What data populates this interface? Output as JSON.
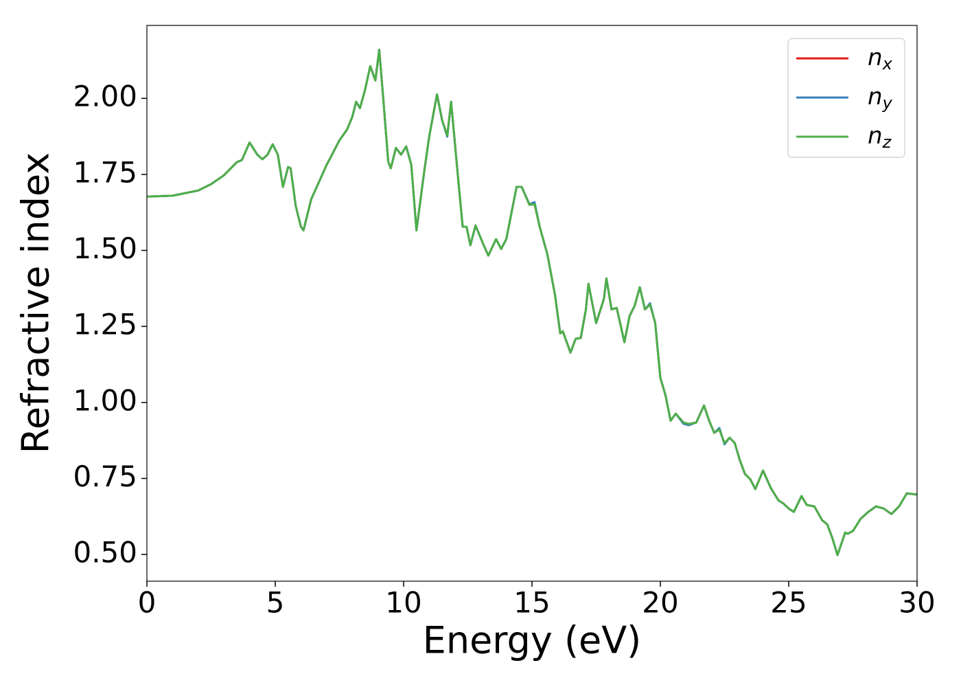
{
  "chart_data": {
    "type": "line",
    "xlabel": "Energy (eV)",
    "ylabel": "Refractive index",
    "x": [
      0,
      1,
      2,
      2.5,
      3,
      3.5,
      3.7,
      4.0,
      4.3,
      4.5,
      4.7,
      4.9,
      5.1,
      5.3,
      5.5,
      5.6,
      5.8,
      6.0,
      6.1,
      6.4,
      7,
      7.5,
      7.8,
      8.0,
      8.15,
      8.3,
      8.5,
      8.7,
      8.9,
      9.05,
      9.2,
      9.4,
      9.5,
      9.7,
      9.9,
      10.1,
      10.3,
      10.5,
      10.8,
      11.0,
      11.3,
      11.5,
      11.7,
      11.85,
      12.1,
      12.3,
      12.45,
      12.6,
      12.8,
      13.1,
      13.3,
      13.6,
      13.8,
      14.0,
      14.2,
      14.4,
      14.6,
      14.9,
      15.1,
      15.3,
      15.6,
      15.9,
      16.1,
      16.2,
      16.5,
      16.7,
      16.9,
      17.1,
      17.2,
      17.5,
      17.8,
      17.9,
      18.1,
      18.3,
      18.6,
      18.8,
      19.0,
      19.2,
      19.4,
      19.6,
      19.8,
      20.0,
      20.2,
      20.4,
      20.6,
      20.9,
      21.1,
      21.4,
      21.7,
      21.9,
      22.1,
      22.3,
      22.5,
      22.7,
      22.9,
      23.1,
      23.3,
      23.5,
      23.7,
      24.0,
      24.3,
      24.6,
      24.8,
      25.0,
      25.2,
      25.5,
      25.7,
      26.0,
      26.3,
      26.5,
      26.7,
      26.9,
      27.2,
      27.3,
      27.5,
      27.8,
      28.1,
      28.4,
      28.7,
      29.0,
      29.3,
      29.6,
      30.0
    ],
    "series": [
      {
        "name": "nx",
        "color": "#e41a1c",
        "values": [
          1.677,
          1.68,
          1.697,
          1.718,
          1.747,
          1.79,
          1.797,
          1.855,
          1.815,
          1.8,
          1.815,
          1.849,
          1.815,
          1.709,
          1.774,
          1.77,
          1.645,
          1.578,
          1.566,
          1.668,
          1.781,
          1.862,
          1.898,
          1.939,
          1.989,
          1.968,
          2.029,
          2.106,
          2.059,
          2.16,
          2.007,
          1.792,
          1.77,
          1.837,
          1.815,
          1.842,
          1.781,
          1.566,
          1.758,
          1.876,
          2.013,
          1.928,
          1.878,
          1.989,
          1.758,
          1.578,
          1.578,
          1.517,
          1.582,
          1.521,
          1.483,
          1.537,
          1.505,
          1.537,
          1.623,
          1.709,
          1.709,
          1.65,
          1.652,
          1.578,
          1.487,
          1.352,
          1.227,
          1.234,
          1.164,
          1.209,
          1.212,
          1.306,
          1.39,
          1.261,
          1.34,
          1.408,
          1.306,
          1.311,
          1.198,
          1.284,
          1.318,
          1.379,
          1.306,
          1.322,
          1.261,
          1.081,
          1.024,
          0.94,
          0.963,
          0.934,
          0.929,
          0.934,
          0.99,
          0.94,
          0.9,
          0.911,
          0.866,
          0.884,
          0.866,
          0.809,
          0.764,
          0.748,
          0.715,
          0.776,
          0.719,
          0.678,
          0.667,
          0.651,
          0.64,
          0.692,
          0.663,
          0.658,
          0.613,
          0.599,
          0.554,
          0.498,
          0.572,
          0.568,
          0.577,
          0.617,
          0.64,
          0.658,
          0.651,
          0.633,
          0.658,
          0.701,
          0.697
        ]
      },
      {
        "name": "ny",
        "color": "#377eb8",
        "values": [
          1.677,
          1.68,
          1.697,
          1.718,
          1.747,
          1.79,
          1.797,
          1.855,
          1.815,
          1.8,
          1.815,
          1.849,
          1.815,
          1.709,
          1.774,
          1.77,
          1.645,
          1.578,
          1.566,
          1.668,
          1.781,
          1.862,
          1.898,
          1.939,
          1.989,
          1.968,
          2.029,
          2.106,
          2.059,
          2.16,
          2.007,
          1.792,
          1.77,
          1.837,
          1.815,
          1.842,
          1.781,
          1.566,
          1.758,
          1.876,
          2.013,
          1.928,
          1.874,
          1.989,
          1.758,
          1.578,
          1.578,
          1.517,
          1.582,
          1.521,
          1.483,
          1.537,
          1.505,
          1.537,
          1.623,
          1.709,
          1.709,
          1.652,
          1.659,
          1.578,
          1.487,
          1.352,
          1.227,
          1.234,
          1.164,
          1.209,
          1.212,
          1.306,
          1.39,
          1.261,
          1.34,
          1.408,
          1.306,
          1.311,
          1.198,
          1.284,
          1.318,
          1.379,
          1.306,
          1.326,
          1.261,
          1.081,
          1.024,
          0.94,
          0.963,
          0.93,
          0.925,
          0.934,
          0.99,
          0.94,
          0.9,
          0.916,
          0.862,
          0.884,
          0.866,
          0.809,
          0.764,
          0.748,
          0.715,
          0.776,
          0.719,
          0.678,
          0.667,
          0.651,
          0.64,
          0.692,
          0.663,
          0.658,
          0.613,
          0.599,
          0.554,
          0.498,
          0.572,
          0.568,
          0.577,
          0.617,
          0.64,
          0.658,
          0.651,
          0.633,
          0.658,
          0.701,
          0.697
        ]
      },
      {
        "name": "nz",
        "color": "#4daf4a",
        "values": [
          1.677,
          1.68,
          1.697,
          1.718,
          1.747,
          1.79,
          1.797,
          1.855,
          1.815,
          1.8,
          1.815,
          1.849,
          1.815,
          1.709,
          1.774,
          1.77,
          1.645,
          1.578,
          1.566,
          1.668,
          1.781,
          1.862,
          1.898,
          1.939,
          1.989,
          1.968,
          2.029,
          2.106,
          2.059,
          2.16,
          2.007,
          1.792,
          1.77,
          1.837,
          1.815,
          1.842,
          1.781,
          1.566,
          1.758,
          1.876,
          2.013,
          1.928,
          1.878,
          1.989,
          1.758,
          1.578,
          1.578,
          1.517,
          1.582,
          1.521,
          1.483,
          1.537,
          1.505,
          1.537,
          1.623,
          1.709,
          1.709,
          1.65,
          1.652,
          1.578,
          1.487,
          1.352,
          1.227,
          1.234,
          1.164,
          1.209,
          1.212,
          1.306,
          1.39,
          1.261,
          1.34,
          1.408,
          1.306,
          1.311,
          1.198,
          1.284,
          1.318,
          1.379,
          1.306,
          1.322,
          1.261,
          1.081,
          1.024,
          0.94,
          0.963,
          0.934,
          0.929,
          0.934,
          0.99,
          0.94,
          0.9,
          0.911,
          0.866,
          0.884,
          0.866,
          0.809,
          0.764,
          0.748,
          0.715,
          0.776,
          0.719,
          0.678,
          0.667,
          0.651,
          0.64,
          0.692,
          0.663,
          0.658,
          0.613,
          0.599,
          0.554,
          0.498,
          0.572,
          0.568,
          0.577,
          0.617,
          0.64,
          0.658,
          0.651,
          0.633,
          0.658,
          0.701,
          0.697
        ]
      }
    ],
    "xlim": [
      0,
      30
    ],
    "xticks": [
      0,
      5,
      10,
      15,
      20,
      25,
      30
    ],
    "ylim": [
      0.412,
      2.24
    ],
    "yticks": [
      {
        "value": 0.5,
        "label": "0.50"
      },
      {
        "value": 0.75,
        "label": "0.75"
      },
      {
        "value": 1.0,
        "label": "1.00"
      },
      {
        "value": 1.25,
        "label": "1.25"
      },
      {
        "value": 1.5,
        "label": "1.50"
      },
      {
        "value": 1.75,
        "label": "1.75"
      },
      {
        "value": 2.0,
        "label": "2.00"
      }
    ],
    "grid": false,
    "legend": "upper right"
  }
}
